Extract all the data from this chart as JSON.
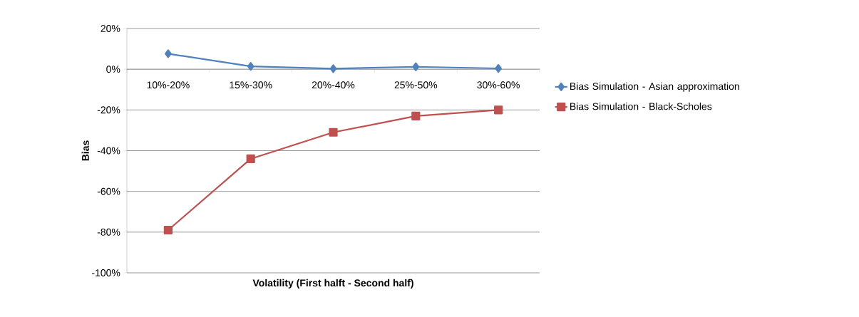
{
  "chart_data": {
    "type": "line",
    "xlabel": "Volatility (First halft - Second half)",
    "ylabel": "Bias",
    "categories": [
      "10%-20%",
      "15%-30%",
      "20%-40%",
      "25%-50%",
      "30%-60%"
    ],
    "series": [
      {
        "name": "Bias Simulation - Asian approximation",
        "color": "#4f81bd",
        "marker": "diamond",
        "values": [
          7.6,
          1.4,
          0.3,
          1.2,
          0.4
        ]
      },
      {
        "name": "Bias Simulation - Black-Scholes",
        "color": "#c0504d",
        "marker": "square",
        "values": [
          -79,
          -44,
          -31,
          -23,
          -20
        ]
      }
    ],
    "ylim": [
      -100,
      20
    ],
    "yticks": [
      {
        "value": -100,
        "label": "-100%"
      },
      {
        "value": -80,
        "label": "-80%"
      },
      {
        "value": -60,
        "label": "-60%"
      },
      {
        "value": -40,
        "label": "-40%"
      },
      {
        "value": -20,
        "label": "-20%"
      },
      {
        "value": 0,
        "label": "0%"
      },
      {
        "value": 20,
        "label": "20%"
      }
    ],
    "grid": "y",
    "legend": "right",
    "line_style": "solid"
  }
}
